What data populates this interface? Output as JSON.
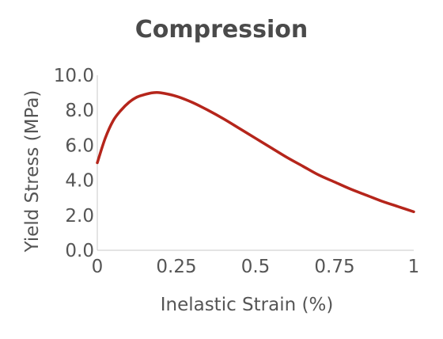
{
  "chart_data": {
    "type": "line",
    "title": "Compression",
    "xlabel": "Inelastic Strain (%)",
    "ylabel": "Yield Stress (MPa)",
    "xlim": [
      0,
      1
    ],
    "ylim": [
      0,
      10
    ],
    "x_ticks": [
      0,
      0.25,
      0.5,
      0.75,
      1
    ],
    "x_tick_labels": [
      "0",
      "0.25",
      "0.5",
      "0.75",
      "1"
    ],
    "y_ticks": [
      0,
      2,
      4,
      6,
      8,
      10
    ],
    "y_tick_labels": [
      "0.0",
      "2.0",
      "4.0",
      "6.0",
      "8.0",
      "10.0"
    ],
    "grid": false,
    "series": [
      {
        "color": "#b5251b",
        "x": [
          0,
          0.025,
          0.05,
          0.075,
          0.1,
          0.125,
          0.15,
          0.175,
          0.2,
          0.25,
          0.3,
          0.35,
          0.4,
          0.45,
          0.5,
          0.55,
          0.6,
          0.65,
          0.7,
          0.75,
          0.8,
          0.85,
          0.9,
          0.95,
          1.0
        ],
        "y": [
          5.0,
          6.4,
          7.4,
          8.0,
          8.45,
          8.75,
          8.9,
          9.0,
          9.0,
          8.8,
          8.45,
          8.0,
          7.5,
          6.95,
          6.4,
          5.85,
          5.3,
          4.8,
          4.3,
          3.9,
          3.5,
          3.15,
          2.8,
          2.5,
          2.2
        ]
      }
    ]
  }
}
